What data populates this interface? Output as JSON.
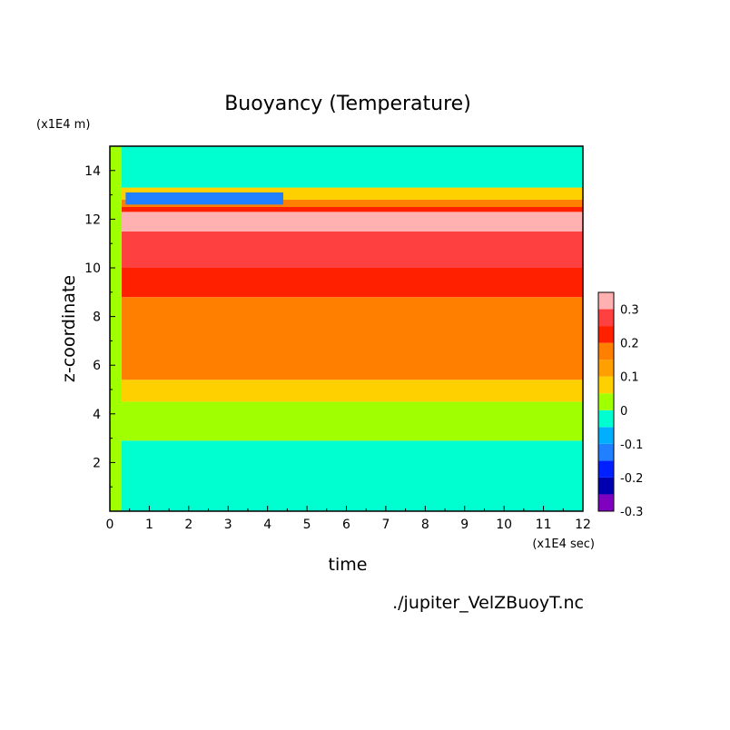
{
  "chart_data": {
    "type": "heatmap",
    "title": "Buoyancy (Temperature)",
    "xlabel": "time",
    "ylabel": "z-coordinate",
    "x_unit": "(x1E4 sec)",
    "y_unit": "(x1E4 m)",
    "xlim": [
      0,
      12
    ],
    "ylim": [
      0,
      15
    ],
    "x_ticks": [
      "0",
      "1",
      "2",
      "3",
      "4",
      "5",
      "6",
      "7",
      "8",
      "9",
      "10",
      "11",
      "12"
    ],
    "y_ticks": [
      "2",
      "4",
      "6",
      "8",
      "10",
      "12",
      "14"
    ],
    "source_file": "./jupiter_VelZBuoyT.nc",
    "colorbar": {
      "ticks": [
        "0.3",
        "0.2",
        "0.1",
        "0",
        "-0.1",
        "-0.2",
        "-0.3"
      ],
      "levels": [
        {
          "min": -0.3,
          "max": -0.25,
          "color": "#8000c0"
        },
        {
          "min": -0.25,
          "max": -0.2,
          "color": "#0000b0"
        },
        {
          "min": -0.2,
          "max": -0.15,
          "color": "#0020ff"
        },
        {
          "min": -0.15,
          "max": -0.1,
          "color": "#2080ff"
        },
        {
          "min": -0.1,
          "max": -0.05,
          "color": "#00b0ff"
        },
        {
          "min": -0.05,
          "max": 0.0,
          "color": "#00ffd0"
        },
        {
          "min": 0.0,
          "max": 0.05,
          "color": "#a0ff00"
        },
        {
          "min": 0.05,
          "max": 0.1,
          "color": "#ffd000"
        },
        {
          "min": 0.1,
          "max": 0.15,
          "color": "#ffa000"
        },
        {
          "min": 0.15,
          "max": 0.2,
          "color": "#ff7f00"
        },
        {
          "min": 0.2,
          "max": 0.25,
          "color": "#ff2000"
        },
        {
          "min": 0.25,
          "max": 0.3,
          "color": "#ff4040"
        },
        {
          "min": 0.3,
          "max": 0.35,
          "color": "#ffb0b0"
        }
      ]
    },
    "bands": [
      {
        "from": 0.0,
        "to": 2.9,
        "value": -0.02
      },
      {
        "from": 2.9,
        "to": 4.5,
        "value": 0.03
      },
      {
        "from": 4.5,
        "to": 5.4,
        "value": 0.08
      },
      {
        "from": 5.4,
        "to": 8.8,
        "value": 0.17
      },
      {
        "from": 8.8,
        "to": 10.0,
        "value": 0.22
      },
      {
        "from": 10.0,
        "to": 11.5,
        "value": 0.27
      },
      {
        "from": 11.5,
        "to": 12.3,
        "value": 0.32
      },
      {
        "from": 12.3,
        "to": 12.5,
        "value": 0.22
      },
      {
        "from": 12.5,
        "to": 12.8,
        "value": 0.17
      },
      {
        "from": 12.8,
        "to": 13.3,
        "value": 0.08
      },
      {
        "from": 13.3,
        "to": 15.0,
        "value": -0.02
      }
    ],
    "features": [
      {
        "label": "initial layer",
        "t_max": 0.3,
        "value": 0.03
      },
      {
        "label": "cold patch",
        "t_from": 0.4,
        "t_to": 4.4,
        "z_from": 12.6,
        "z_to": 13.1,
        "value": -0.12
      }
    ]
  }
}
